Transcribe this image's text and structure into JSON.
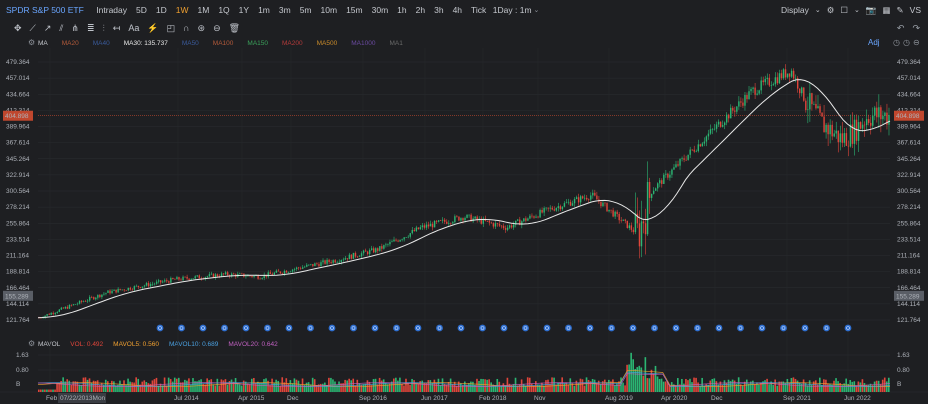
{
  "header": {
    "title": "SPDR S&P 500 ETF",
    "timeframes": [
      "Intraday",
      "5D",
      "1D",
      "1W",
      "1M",
      "1Q",
      "1Y",
      "1m",
      "3m",
      "5m",
      "10m",
      "15m",
      "30m",
      "1h",
      "2h",
      "3h",
      "4h",
      "Tick"
    ],
    "active_timeframe": "1W",
    "interval_select": "1Day : 1m",
    "display_label": "Display",
    "vs_label": "VS"
  },
  "ma_indicator": {
    "label": "MA",
    "items": [
      {
        "label": "MA20",
        "color": "#b35a3a"
      },
      {
        "label": "MA40",
        "color": "#3a5a9a"
      },
      {
        "label": "MA30: 135.737",
        "color": "#e8e8e8"
      },
      {
        "label": "MA50",
        "color": "#3a5a9a"
      },
      {
        "label": "MA100",
        "color": "#b35a3a"
      },
      {
        "label": "MA150",
        "color": "#3aa05a"
      },
      {
        "label": "MA200",
        "color": "#b33a3a"
      },
      {
        "label": "MA500",
        "color": "#c88a2a"
      },
      {
        "label": "MA1000",
        "color": "#6a4aa0"
      },
      {
        "label": "MA1",
        "color": "#6a6a6a"
      }
    ],
    "adj_label": "Adj"
  },
  "volume_indicator": {
    "label": "MAVOL",
    "items": [
      {
        "label": "VOL: 0.492",
        "color": "#e0453a"
      },
      {
        "label": "MAVOL5: 0.560",
        "color": "#f0a030"
      },
      {
        "label": "MAVOL10: 0.689",
        "color": "#4aa0e0"
      },
      {
        "label": "MAVOL20: 0.642",
        "color": "#c060c0"
      }
    ]
  },
  "price_axis": {
    "ticks": [
      "479.364",
      "457.014",
      "434.664",
      "412.314",
      "389.964",
      "367.614",
      "345.264",
      "322.914",
      "300.564",
      "278.214",
      "255.864",
      "233.514",
      "211.164",
      "188.814",
      "166.464",
      "144.114",
      "121.764"
    ],
    "left_badge_high": "404.898",
    "left_badge_low": "155.289",
    "right_badge_high": "404.898",
    "right_badge_low": "155.289"
  },
  "volume_axis": {
    "ticks": [
      "1.63",
      "0.80",
      "B"
    ]
  },
  "date_axis": {
    "labels": [
      "Feb",
      "Jul 2014",
      "Apr 2015",
      "Dec",
      "Sep 2016",
      "Jun 2017",
      "Feb 2018",
      "Nov",
      "Aug 2019",
      "Apr 2020",
      "Dec",
      "Sep 2021",
      "Jun 2022"
    ],
    "cursor_date": "07/22/2013Mon"
  },
  "colors": {
    "up": "#2bb673",
    "down": "#e0453a",
    "ma": "#e8e8e8",
    "accent": "#6aa6ff",
    "active": "#f0a030"
  },
  "chart_data": {
    "type": "candlestick",
    "price_range": [
      121.764,
      479.364
    ],
    "volume_range": [
      0,
      1.63
    ]
  }
}
